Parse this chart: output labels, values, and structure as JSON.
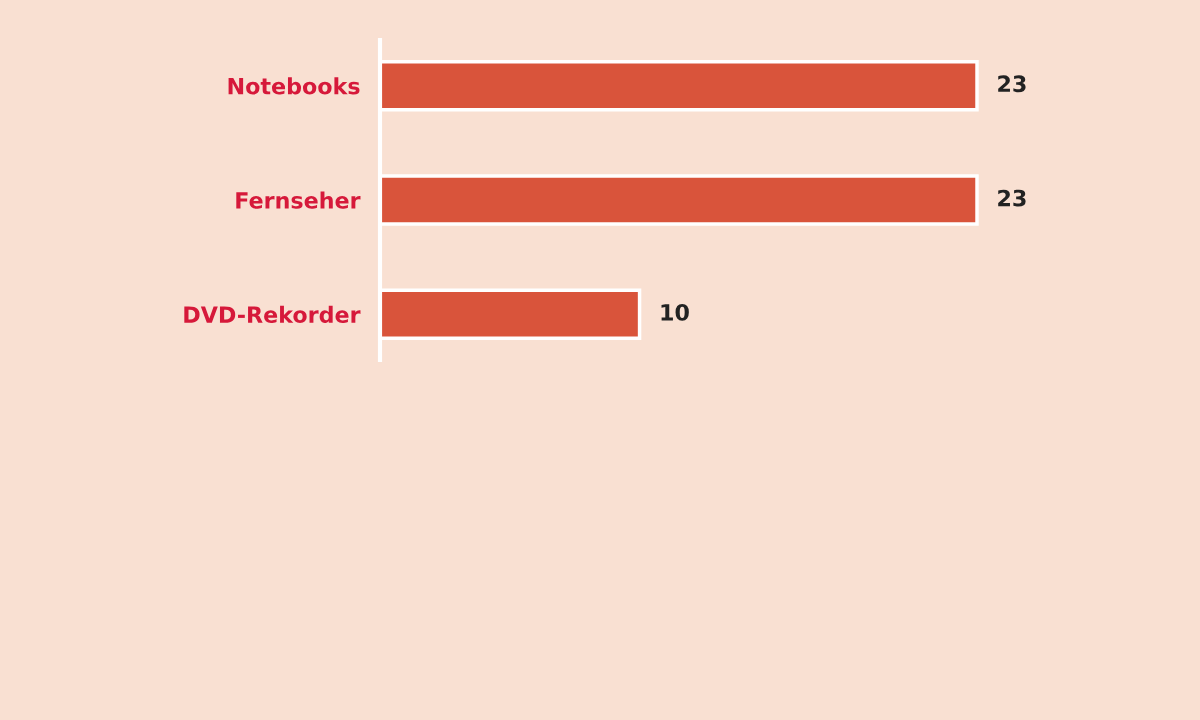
{
  "chart_data": {
    "type": "bar",
    "orientation": "horizontal",
    "categories": [
      "Notebooks",
      "Fernseher",
      "DVD-Rekorder"
    ],
    "values": [
      23,
      23,
      10
    ],
    "color": "#d9543b",
    "data_labels": true,
    "grid": false,
    "legend": false
  }
}
